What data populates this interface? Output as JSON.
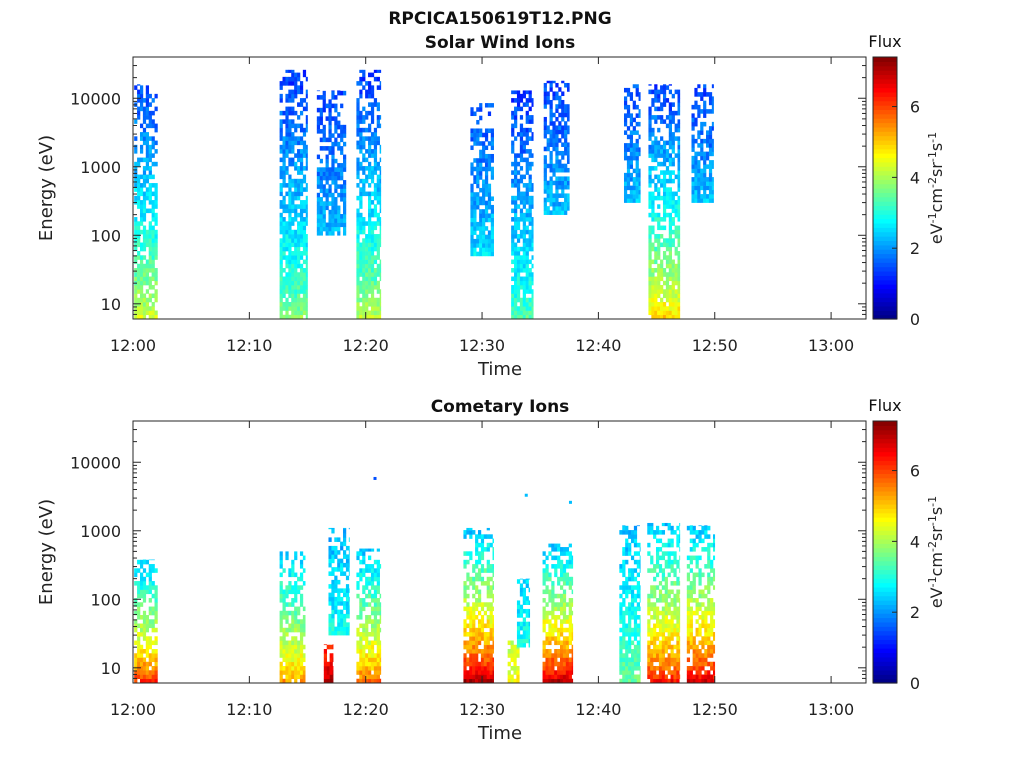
{
  "figure": {
    "title": "RPCICA150619T12.PNG"
  },
  "chart_data": [
    {
      "type": "heatmap",
      "title": "Solar Wind Ions",
      "xlabel": "Time",
      "ylabel": "Energy (eV)",
      "x_ticks": [
        "12:00",
        "12:10",
        "12:20",
        "12:30",
        "12:40",
        "12:50",
        "13:00"
      ],
      "y_ticks": [
        "10",
        "100",
        "1000",
        "10000"
      ],
      "y_scale": "log",
      "xlim_minutes": [
        0,
        63
      ],
      "ylim": [
        6,
        40000
      ],
      "colorbar": {
        "title": "Flux",
        "label": "eV-1cm-2sr-1s-1",
        "ticks": [
          "0",
          "2",
          "4",
          "6"
        ],
        "range": [
          0,
          7.4
        ],
        "colormap": "jet"
      },
      "bursts": [
        {
          "t_min": 0.1,
          "t_max": 2.1,
          "e_min": 6,
          "e_max": 16000,
          "flux_low_e": 4.4,
          "flux_high_e": 1.4
        },
        {
          "t_min": 12.6,
          "t_max": 15.0,
          "e_min": 6,
          "e_max": 26000,
          "flux_low_e": 3.8,
          "flux_high_e": 1.3
        },
        {
          "t_min": 15.8,
          "t_max": 18.3,
          "e_min": 100,
          "e_max": 13000,
          "flux_low_e": 2.4,
          "flux_high_e": 1.4
        },
        {
          "t_min": 19.2,
          "t_max": 21.3,
          "e_min": 6,
          "e_max": 26000,
          "flux_low_e": 4.2,
          "flux_high_e": 1.3
        },
        {
          "t_min": 29.0,
          "t_max": 31.0,
          "e_min": 50,
          "e_max": 8500,
          "flux_low_e": 2.6,
          "flux_high_e": 1.5
        },
        {
          "t_min": 32.5,
          "t_max": 34.4,
          "e_min": 6,
          "e_max": 13000,
          "flux_low_e": 3.4,
          "flux_high_e": 1.3
        },
        {
          "t_min": 35.3,
          "t_max": 37.5,
          "e_min": 200,
          "e_max": 18000,
          "flux_low_e": 2.4,
          "flux_high_e": 1.4
        },
        {
          "t_min": 42.2,
          "t_max": 43.6,
          "e_min": 300,
          "e_max": 16000,
          "flux_low_e": 2.4,
          "flux_high_e": 1.5
        },
        {
          "t_min": 44.3,
          "t_max": 47.0,
          "e_min": 6,
          "e_max": 16000,
          "flux_low_e": 5.0,
          "flux_high_e": 1.3
        },
        {
          "t_min": 48.0,
          "t_max": 49.9,
          "e_min": 300,
          "e_max": 16000,
          "flux_low_e": 2.4,
          "flux_high_e": 1.4
        }
      ]
    },
    {
      "type": "heatmap",
      "title": "Cometary Ions",
      "xlabel": "Time",
      "ylabel": "Energy (eV)",
      "x_ticks": [
        "12:00",
        "12:10",
        "12:20",
        "12:30",
        "12:40",
        "12:50",
        "13:00"
      ],
      "y_ticks": [
        "10",
        "100",
        "1000",
        "10000"
      ],
      "y_scale": "log",
      "xlim_minutes": [
        0,
        63
      ],
      "ylim": [
        6,
        40000
      ],
      "colorbar": {
        "title": "Flux",
        "label": "eV-1cm-2sr-1s-1",
        "ticks": [
          "0",
          "2",
          "4",
          "6"
        ],
        "range": [
          0,
          7.4
        ],
        "colormap": "jet"
      },
      "bursts": [
        {
          "t_min": 0.1,
          "t_max": 2.1,
          "e_min": 6,
          "e_max": 380,
          "flux_low_e": 6.2,
          "flux_high_e": 2.3
        },
        {
          "t_min": 12.6,
          "t_max": 14.8,
          "e_min": 6,
          "e_max": 500,
          "flux_low_e": 5.4,
          "flux_high_e": 2.4
        },
        {
          "t_min": 16.4,
          "t_max": 17.2,
          "e_min": 6,
          "e_max": 22,
          "flux_low_e": 7.0,
          "flux_high_e": 6.2
        },
        {
          "t_min": 16.8,
          "t_max": 18.6,
          "e_min": 30,
          "e_max": 1100,
          "flux_low_e": 3.0,
          "flux_high_e": 2.2
        },
        {
          "t_min": 19.2,
          "t_max": 21.3,
          "e_min": 6,
          "e_max": 550,
          "flux_low_e": 5.8,
          "flux_high_e": 2.3
        },
        {
          "t_min": 28.4,
          "t_max": 31.0,
          "e_min": 6,
          "e_max": 1100,
          "flux_low_e": 7.1,
          "flux_high_e": 2.3
        },
        {
          "t_min": 32.2,
          "t_max": 33.2,
          "e_min": 6,
          "e_max": 25,
          "flux_low_e": 4.6,
          "flux_high_e": 4.2
        },
        {
          "t_min": 33.0,
          "t_max": 34.1,
          "e_min": 20,
          "e_max": 200,
          "flux_low_e": 3.0,
          "flux_high_e": 2.4
        },
        {
          "t_min": 35.2,
          "t_max": 37.8,
          "e_min": 6,
          "e_max": 650,
          "flux_low_e": 7.0,
          "flux_high_e": 2.3
        },
        {
          "t_min": 41.8,
          "t_max": 43.6,
          "e_min": 6,
          "e_max": 1200,
          "flux_low_e": 3.6,
          "flux_high_e": 2.3
        },
        {
          "t_min": 44.2,
          "t_max": 47.0,
          "e_min": 6,
          "e_max": 1300,
          "flux_low_e": 6.4,
          "flux_high_e": 2.3
        },
        {
          "t_min": 47.6,
          "t_max": 50.0,
          "e_min": 6,
          "e_max": 1200,
          "flux_low_e": 6.8,
          "flux_high_e": 2.3
        }
      ],
      "isolated_points": [
        {
          "t": 20.8,
          "e": 5800,
          "flux": 1.5
        },
        {
          "t": 33.8,
          "e": 3300,
          "flux": 2.3
        },
        {
          "t": 37.6,
          "e": 2600,
          "flux": 2.3
        }
      ]
    }
  ]
}
